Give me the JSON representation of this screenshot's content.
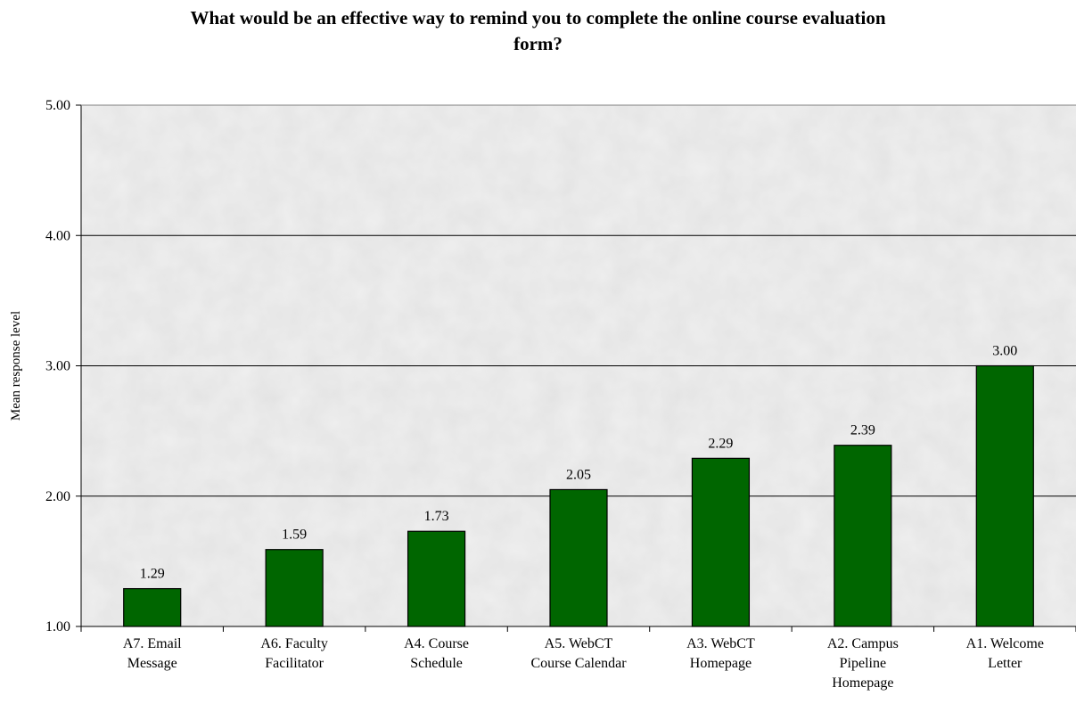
{
  "chart_data": {
    "type": "bar",
    "title_lines": [
      "What would be an effective way to remind you to complete the online course evaluation",
      "form?"
    ],
    "xlabel": "",
    "ylabel": "Mean response level",
    "ylim": [
      1.0,
      5.0
    ],
    "yticks": [
      "1.00",
      "2.00",
      "3.00",
      "4.00",
      "5.00"
    ],
    "grid": true,
    "legend": "none",
    "categories": [
      [
        "A7. Email",
        "Message"
      ],
      [
        "A6. Faculty",
        "Facilitator"
      ],
      [
        "A4. Course",
        "Schedule"
      ],
      [
        "A5. WebCT",
        "Course Calendar"
      ],
      [
        "A3. WebCT",
        "Homepage"
      ],
      [
        "A2. Campus",
        "Pipeline",
        "Homepage"
      ],
      [
        "A1. Welcome",
        "Letter"
      ]
    ],
    "values": [
      1.29,
      1.59,
      1.73,
      2.05,
      2.29,
      2.39,
      3.0
    ],
    "data_labels": [
      "1.29",
      "1.59",
      "1.73",
      "2.05",
      "2.29",
      "2.39",
      "3.00"
    ],
    "colors": {
      "bar": "#006600",
      "bar_stroke": "#000000",
      "plot_background": "#efefef",
      "gridline": "#000000"
    }
  }
}
